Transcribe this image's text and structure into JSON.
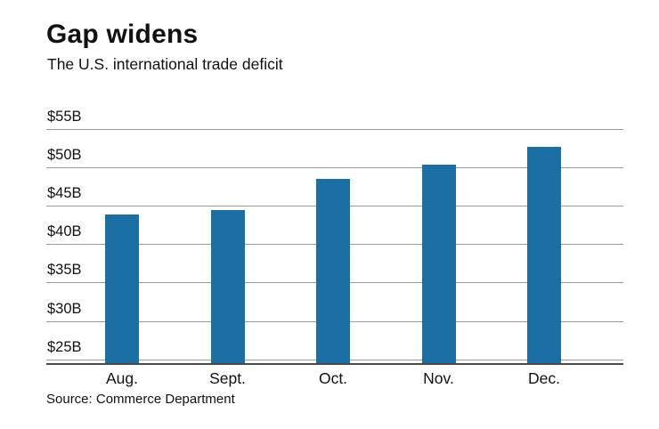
{
  "header": {
    "title": "Gap widens",
    "subtitle": "The U.S. international trade deficit"
  },
  "footer": {
    "source": "Source: Commerce Department"
  },
  "chart_data": {
    "type": "bar",
    "title": "Gap widens",
    "subtitle": "The U.S. international trade deficit",
    "source": "Source: Commerce Department",
    "categories": [
      "Aug.",
      "Sept.",
      "Oct.",
      "Nov.",
      "Dec."
    ],
    "values": [
      43.9,
      44.4,
      48.5,
      50.4,
      52.7
    ],
    "unit": "$B",
    "ylim": [
      24.5,
      55
    ],
    "yticks": [
      {
        "value": 25,
        "label": "$25B"
      },
      {
        "value": 30,
        "label": "$30B"
      },
      {
        "value": 35,
        "label": "$35B"
      },
      {
        "value": 40,
        "label": "$40B"
      },
      {
        "value": 45,
        "label": "$45B"
      },
      {
        "value": 50,
        "label": "$50B"
      },
      {
        "value": 55,
        "label": "$55B"
      }
    ],
    "bar_color": "#1b6fa3",
    "grid": true,
    "legend": "none",
    "xlabel": "",
    "ylabel": ""
  }
}
